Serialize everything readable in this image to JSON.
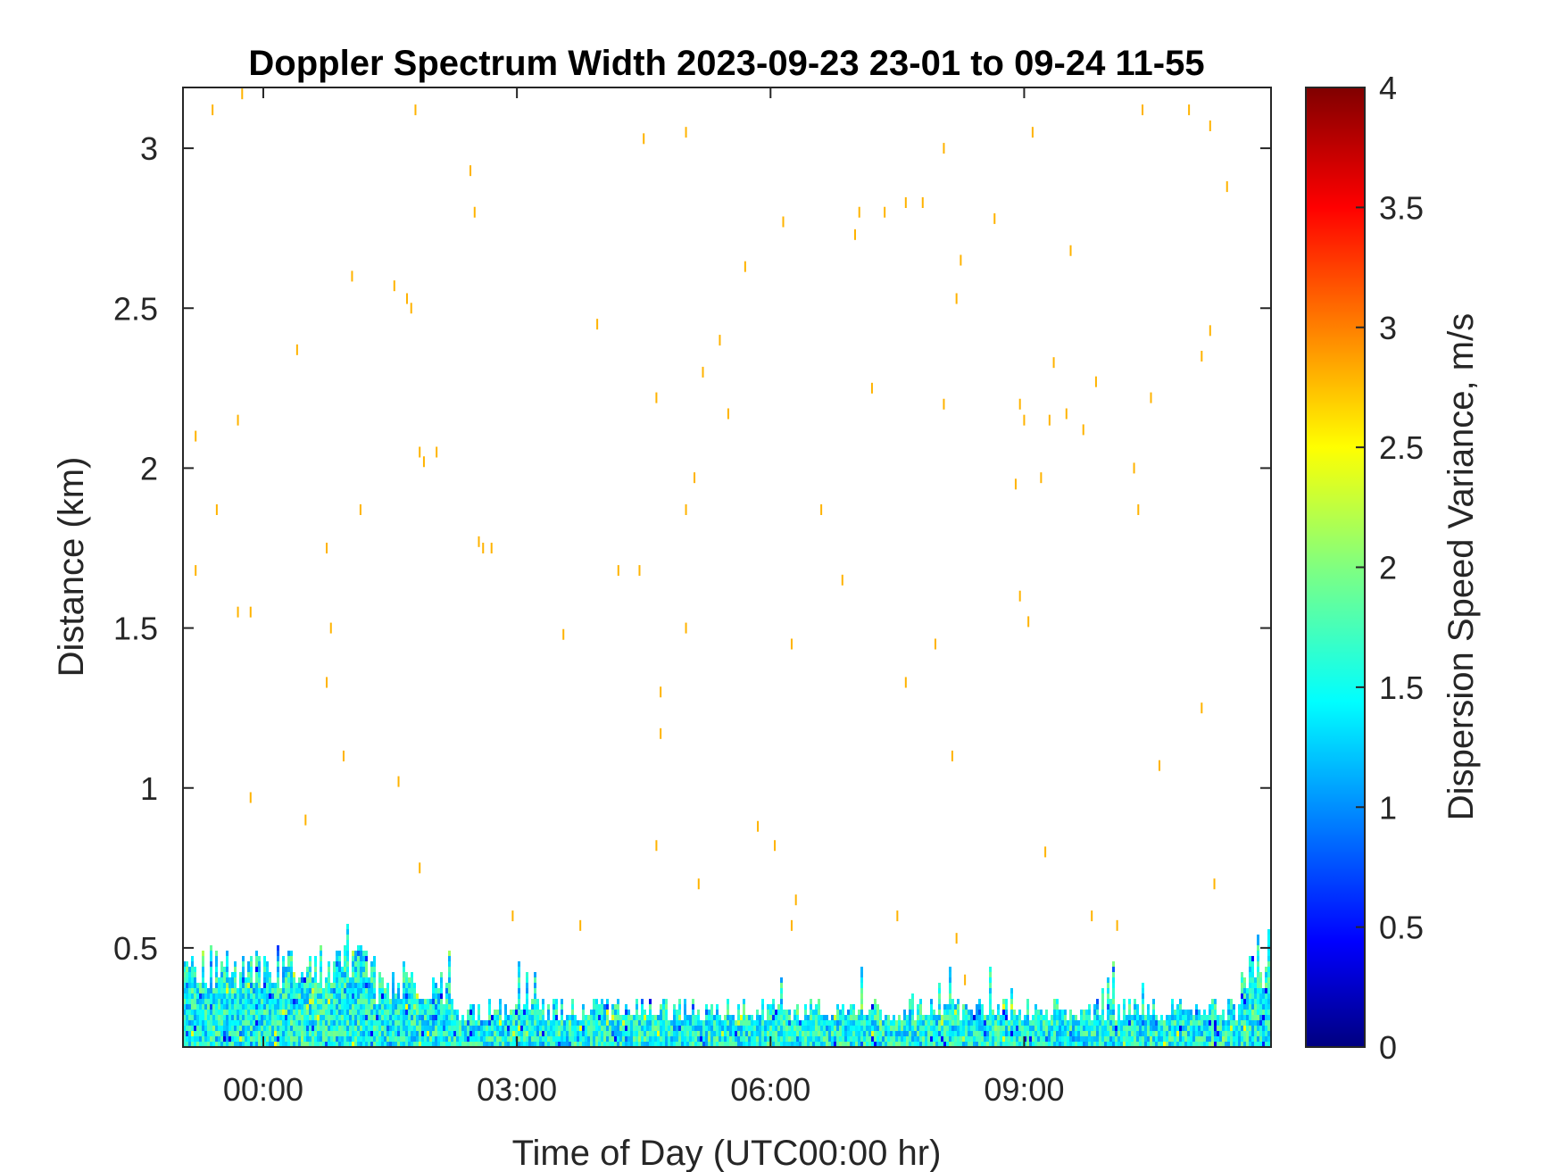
{
  "chart_data": {
    "type": "heatmap",
    "title": "Doppler Spectrum Width 2023-09-23 23-01 to 09-24 11-55",
    "xlabel": "Time of Day (UTC00:00 hr)",
    "ylabel": "Distance (km)",
    "colorbar_label": "Dispersion Speed Variance, m/s",
    "colormap": "jet",
    "x_unit": "hours",
    "xlim": [
      -0.95,
      11.92
    ],
    "ylim": [
      0.19,
      3.19
    ],
    "clim": [
      0,
      4
    ],
    "x_ticks": [
      {
        "value": 0,
        "label": "00:00"
      },
      {
        "value": 3,
        "label": "03:00"
      },
      {
        "value": 6,
        "label": "06:00"
      },
      {
        "value": 9,
        "label": "09:00"
      }
    ],
    "y_ticks": [
      {
        "value": 0.5,
        "label": "0.5"
      },
      {
        "value": 1,
        "label": "1"
      },
      {
        "value": 1.5,
        "label": "1.5"
      },
      {
        "value": 2,
        "label": "2"
      },
      {
        "value": 2.5,
        "label": "2.5"
      },
      {
        "value": 3,
        "label": "3"
      }
    ],
    "colorbar_ticks": [
      {
        "value": 0,
        "label": "0"
      },
      {
        "value": 0.5,
        "label": "0.5"
      },
      {
        "value": 1,
        "label": "1"
      },
      {
        "value": 1.5,
        "label": "1.5"
      },
      {
        "value": 2,
        "label": "2"
      },
      {
        "value": 2.5,
        "label": "2.5"
      },
      {
        "value": 3,
        "label": "3"
      },
      {
        "value": 3.5,
        "label": "3.5"
      },
      {
        "value": 4,
        "label": "4"
      }
    ],
    "scatter_value": 2.8,
    "scatter_points": [
      [
        -0.6,
        3.12
      ],
      [
        -0.25,
        3.17
      ],
      [
        1.8,
        3.12
      ],
      [
        4.5,
        3.03
      ],
      [
        5.0,
        3.05
      ],
      [
        8.05,
        3.0
      ],
      [
        9.1,
        3.05
      ],
      [
        10.4,
        3.12
      ],
      [
        10.95,
        3.12
      ],
      [
        11.2,
        3.07
      ],
      [
        2.45,
        2.93
      ],
      [
        2.5,
        2.8
      ],
      [
        6.15,
        2.77
      ],
      [
        7.0,
        2.73
      ],
      [
        7.05,
        2.8
      ],
      [
        7.35,
        2.8
      ],
      [
        7.6,
        2.83
      ],
      [
        7.8,
        2.83
      ],
      [
        8.65,
        2.78
      ],
      [
        11.4,
        2.88
      ],
      [
        1.05,
        2.6
      ],
      [
        1.55,
        2.57
      ],
      [
        1.7,
        2.53
      ],
      [
        1.75,
        2.5
      ],
      [
        5.7,
        2.63
      ],
      [
        8.25,
        2.65
      ],
      [
        8.2,
        2.53
      ],
      [
        9.55,
        2.68
      ],
      [
        3.95,
        2.45
      ],
      [
        0.4,
        2.37
      ],
      [
        5.4,
        2.4
      ],
      [
        5.2,
        2.3
      ],
      [
        7.2,
        2.25
      ],
      [
        11.2,
        2.43
      ],
      [
        11.1,
        2.35
      ],
      [
        9.35,
        2.33
      ],
      [
        9.85,
        2.27
      ],
      [
        4.65,
        2.22
      ],
      [
        5.5,
        2.17
      ],
      [
        8.05,
        2.2
      ],
      [
        8.95,
        2.2
      ],
      [
        9.0,
        2.15
      ],
      [
        9.3,
        2.15
      ],
      [
        9.5,
        2.17
      ],
      [
        9.7,
        2.12
      ],
      [
        10.5,
        2.22
      ],
      [
        -0.8,
        2.1
      ],
      [
        -0.3,
        2.15
      ],
      [
        1.85,
        2.05
      ],
      [
        1.9,
        2.02
      ],
      [
        2.05,
        2.05
      ],
      [
        5.1,
        1.97
      ],
      [
        8.9,
        1.95
      ],
      [
        9.2,
        1.97
      ],
      [
        10.3,
        2.0
      ],
      [
        -0.55,
        1.87
      ],
      [
        1.15,
        1.87
      ],
      [
        5.0,
        1.87
      ],
      [
        6.6,
        1.87
      ],
      [
        10.35,
        1.87
      ],
      [
        -0.8,
        1.68
      ],
      [
        0.75,
        1.75
      ],
      [
        2.55,
        1.77
      ],
      [
        2.6,
        1.75
      ],
      [
        2.7,
        1.75
      ],
      [
        4.2,
        1.68
      ],
      [
        4.45,
        1.68
      ],
      [
        6.85,
        1.65
      ],
      [
        8.95,
        1.6
      ],
      [
        -0.3,
        1.55
      ],
      [
        -0.15,
        1.55
      ],
      [
        0.8,
        1.5
      ],
      [
        3.55,
        1.48
      ],
      [
        5.0,
        1.5
      ],
      [
        6.25,
        1.45
      ],
      [
        7.95,
        1.45
      ],
      [
        9.05,
        1.52
      ],
      [
        0.75,
        1.33
      ],
      [
        4.7,
        1.3
      ],
      [
        7.6,
        1.33
      ],
      [
        11.1,
        1.25
      ],
      [
        4.7,
        1.17
      ],
      [
        0.95,
        1.1
      ],
      [
        8.15,
        1.1
      ],
      [
        1.6,
        1.02
      ],
      [
        10.6,
        1.07
      ],
      [
        -0.15,
        0.97
      ],
      [
        0.5,
        0.9
      ],
      [
        5.85,
        0.88
      ],
      [
        6.05,
        0.82
      ],
      [
        4.65,
        0.82
      ],
      [
        9.25,
        0.8
      ],
      [
        1.85,
        0.75
      ],
      [
        5.15,
        0.7
      ],
      [
        6.3,
        0.65
      ],
      [
        11.25,
        0.7
      ],
      [
        2.95,
        0.6
      ],
      [
        3.75,
        0.57
      ],
      [
        6.25,
        0.57
      ],
      [
        7.5,
        0.6
      ],
      [
        9.8,
        0.6
      ],
      [
        10.1,
        0.57
      ],
      [
        8.2,
        0.53
      ],
      [
        8.3,
        0.4
      ]
    ]
  }
}
